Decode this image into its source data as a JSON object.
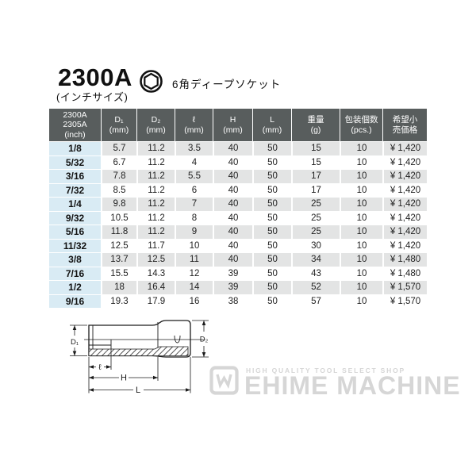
{
  "header": {
    "product_code": "2300A",
    "size_note": "(インチサイズ)",
    "product_type": "6角ディープソケット",
    "icon": "hex-socket-cross-section-icon"
  },
  "table": {
    "columns": [
      "2300A\n2305A\n(inch)",
      "D₁\n(mm)",
      "D₂\n(mm)",
      "ℓ\n(mm)",
      "H\n(mm)",
      "L\n(mm)",
      "重量\n(g)",
      "包装個数\n(pcs.)",
      "希望小\n売価格"
    ],
    "rows": [
      [
        "1/8",
        "5.7",
        "11.2",
        "3.5",
        "40",
        "50",
        "15",
        "10",
        "¥ 1,420"
      ],
      [
        "5/32",
        "6.7",
        "11.2",
        "4",
        "40",
        "50",
        "15",
        "10",
        "¥ 1,420"
      ],
      [
        "3/16",
        "7.8",
        "11.2",
        "5.5",
        "40",
        "50",
        "17",
        "10",
        "¥ 1,420"
      ],
      [
        "7/32",
        "8.5",
        "11.2",
        "6",
        "40",
        "50",
        "17",
        "10",
        "¥ 1,420"
      ],
      [
        "1/4",
        "9.8",
        "11.2",
        "7",
        "40",
        "50",
        "25",
        "10",
        "¥ 1,420"
      ],
      [
        "9/32",
        "10.5",
        "11.2",
        "8",
        "40",
        "50",
        "25",
        "10",
        "¥ 1,420"
      ],
      [
        "5/16",
        "11.8",
        "11.2",
        "9",
        "40",
        "50",
        "25",
        "10",
        "¥ 1,420"
      ],
      [
        "11/32",
        "12.5",
        "11.7",
        "10",
        "40",
        "50",
        "30",
        "10",
        "¥ 1,420"
      ],
      [
        "3/8",
        "13.7",
        "12.5",
        "11",
        "40",
        "50",
        "34",
        "10",
        "¥ 1,480"
      ],
      [
        "7/16",
        "15.5",
        "14.3",
        "12",
        "39",
        "50",
        "43",
        "10",
        "¥ 1,480"
      ],
      [
        "1/2",
        "18",
        "16.4",
        "14",
        "39",
        "50",
        "52",
        "10",
        "¥ 1,570"
      ],
      [
        "9/16",
        "19.3",
        "17.9",
        "16",
        "38",
        "50",
        "57",
        "10",
        "¥ 1,570"
      ]
    ]
  },
  "diagram": {
    "labels": {
      "d1": "D₁",
      "d2": "D₂",
      "ell": "ℓ",
      "h": "H",
      "l": "L"
    }
  },
  "watermark": {
    "tagline": "HIGH QUALITY TOOL SELECT SHOP",
    "brand": "EHIME MACHINE",
    "icon": "ehime-machine-w-mark-icon"
  },
  "colors": {
    "header_bg": "#585d5d",
    "inch_column_bg": "#d9ebf4",
    "row_stripe_bg": "#e3e4e4",
    "page_bg": "#ffffff",
    "text": "#1c1c1c",
    "watermark_gray": "#d6d6d6"
  }
}
